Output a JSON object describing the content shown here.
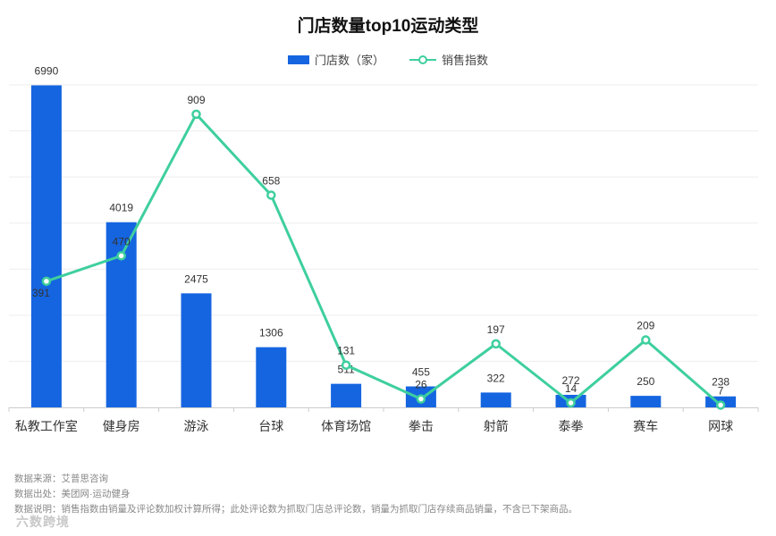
{
  "chart_data": {
    "type": "bar",
    "title": "门店数量top10运动类型",
    "categories": [
      "私教工作室",
      "健身房",
      "游泳",
      "台球",
      "体育场馆",
      "拳击",
      "射箭",
      "泰拳",
      "赛车",
      "网球"
    ],
    "series": [
      {
        "name": "门店数（家）",
        "type": "bar",
        "axis": "left",
        "color": "#1565e0",
        "values": [
          6990,
          4019,
          2475,
          1306,
          511,
          455,
          322,
          272,
          250,
          238
        ]
      },
      {
        "name": "销售指数",
        "type": "line",
        "axis": "right",
        "color": "#3ecf9e",
        "values": [
          391,
          470,
          909,
          658,
          131,
          26,
          197,
          14,
          209,
          7
        ]
      }
    ],
    "y_left_lim": [
      0,
      7000
    ],
    "y_right_lim": [
      0,
      1000
    ],
    "grid": true,
    "legend_position": "top-center"
  },
  "footnotes": {
    "source": "数据来源：艾普思咨询",
    "origin": "数据出处：美团网·运动健身",
    "note": "数据说明：销售指数由销量及评论数加权计算所得；此处评论数为抓取门店总评论数，销量为抓取门店存续商品销量，不含已下架商品。"
  },
  "watermark": "六数跨境"
}
